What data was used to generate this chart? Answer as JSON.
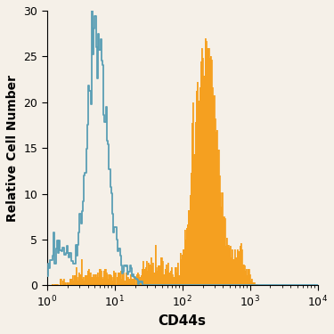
{
  "title": "",
  "xlabel": "CD44s",
  "ylabel": "Relative Cell Number",
  "xlim": [
    1,
    10000
  ],
  "ylim": [
    0,
    30
  ],
  "yticks": [
    0,
    5,
    10,
    15,
    20,
    25,
    30
  ],
  "blue_color": "#5a9fb5",
  "orange_color": "#f5a020",
  "bg_color": "#f5f0e8",
  "xlabel_fontsize": 11,
  "ylabel_fontsize": 10,
  "tick_fontsize": 9,
  "figsize": [
    3.75,
    3.75
  ],
  "dpi": 100,
  "blue_peak": 5.5,
  "blue_sigma": 0.32,
  "blue_max": 30,
  "orange_peak": 220,
  "orange_sigma": 0.38,
  "orange_max": 27
}
